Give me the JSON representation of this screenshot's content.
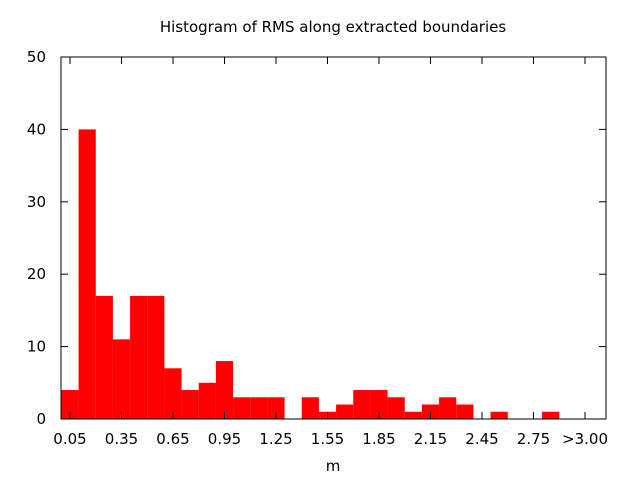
{
  "chart_data": {
    "type": "bar",
    "title": "Histogram of RMS along extracted boundaries",
    "xlabel": "m",
    "ylabel": "",
    "bar_color": "#ff0000",
    "ylim": [
      0,
      50
    ],
    "y_ticks": [
      0,
      10,
      20,
      30,
      40,
      50
    ],
    "x_tick_labels": [
      "0.05",
      "0.35",
      "0.65",
      "0.95",
      "1.25",
      "1.55",
      "1.85",
      "2.15",
      "2.45",
      "2.75",
      ">3.00"
    ],
    "bin_width": 0.1,
    "first_bin_center": 0.05,
    "categories": [
      "0.05",
      "0.15",
      "0.25",
      "0.35",
      "0.45",
      "0.55",
      "0.65",
      "0.75",
      "0.85",
      "0.95",
      "1.05",
      "1.15",
      "1.25",
      "1.35",
      "1.45",
      "1.55",
      "1.65",
      "1.75",
      "1.85",
      "1.95",
      "2.05",
      "2.15",
      "2.25",
      "2.35",
      "2.45",
      "2.55",
      "2.65",
      "2.75",
      "2.85",
      "2.95"
    ],
    "values": [
      4,
      40,
      17,
      11,
      17,
      17,
      7,
      4,
      5,
      8,
      3,
      3,
      3,
      0,
      3,
      1,
      2,
      4,
      4,
      3,
      1,
      2,
      3,
      2,
      0,
      1,
      0,
      0,
      1,
      0
    ],
    "grid": false
  }
}
